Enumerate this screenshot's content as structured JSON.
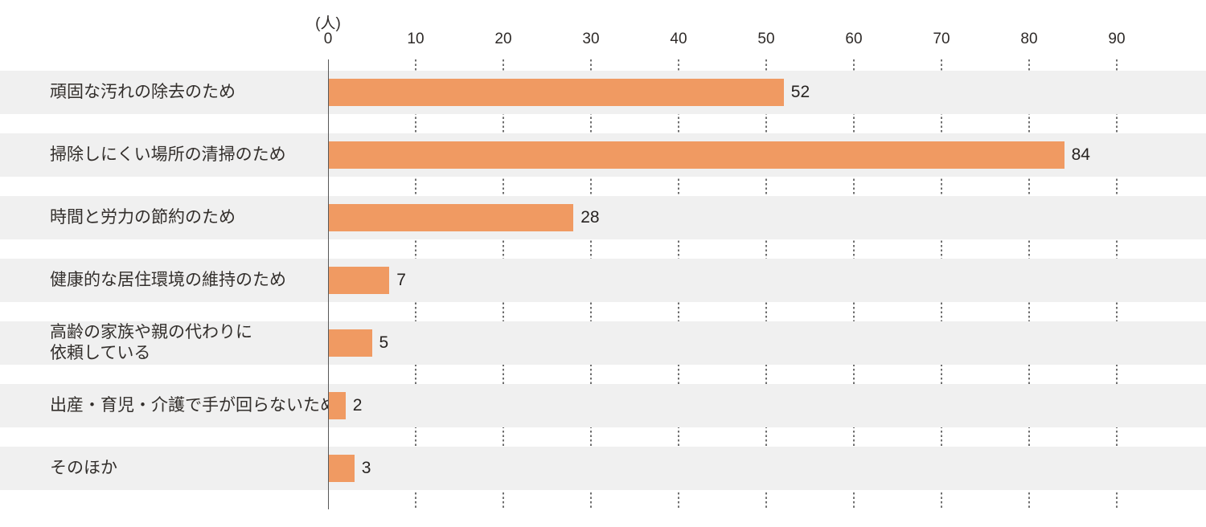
{
  "chart_data": {
    "type": "bar",
    "orientation": "horizontal",
    "title": "",
    "unit_label": "(人)",
    "xlabel": "",
    "ylabel": "",
    "categories": [
      "頑固な汚れの除去のため",
      "掃除しにくい場所の清掃のため",
      "時間と労力の節約のため",
      "健康的な居住環境の維持のため",
      "高齢の家族や親の代わりに\n依頼している",
      "出産・育児・介護で手が回らないため",
      "そのほか"
    ],
    "values": [
      52,
      84,
      28,
      7,
      5,
      2,
      3
    ],
    "xlim": [
      0,
      95
    ],
    "xticks": [
      0,
      10,
      20,
      30,
      40,
      50,
      60,
      70,
      80,
      90
    ],
    "grid": "dotted vertical lines at each tick, visible only in white gaps between row bands",
    "legend": "none",
    "colors": {
      "bar": "#F09A62",
      "row_band": "#F0F0F0",
      "axis_line": "#585858",
      "grid_dots": "#6E6E6E",
      "text": "#332F2C"
    }
  }
}
